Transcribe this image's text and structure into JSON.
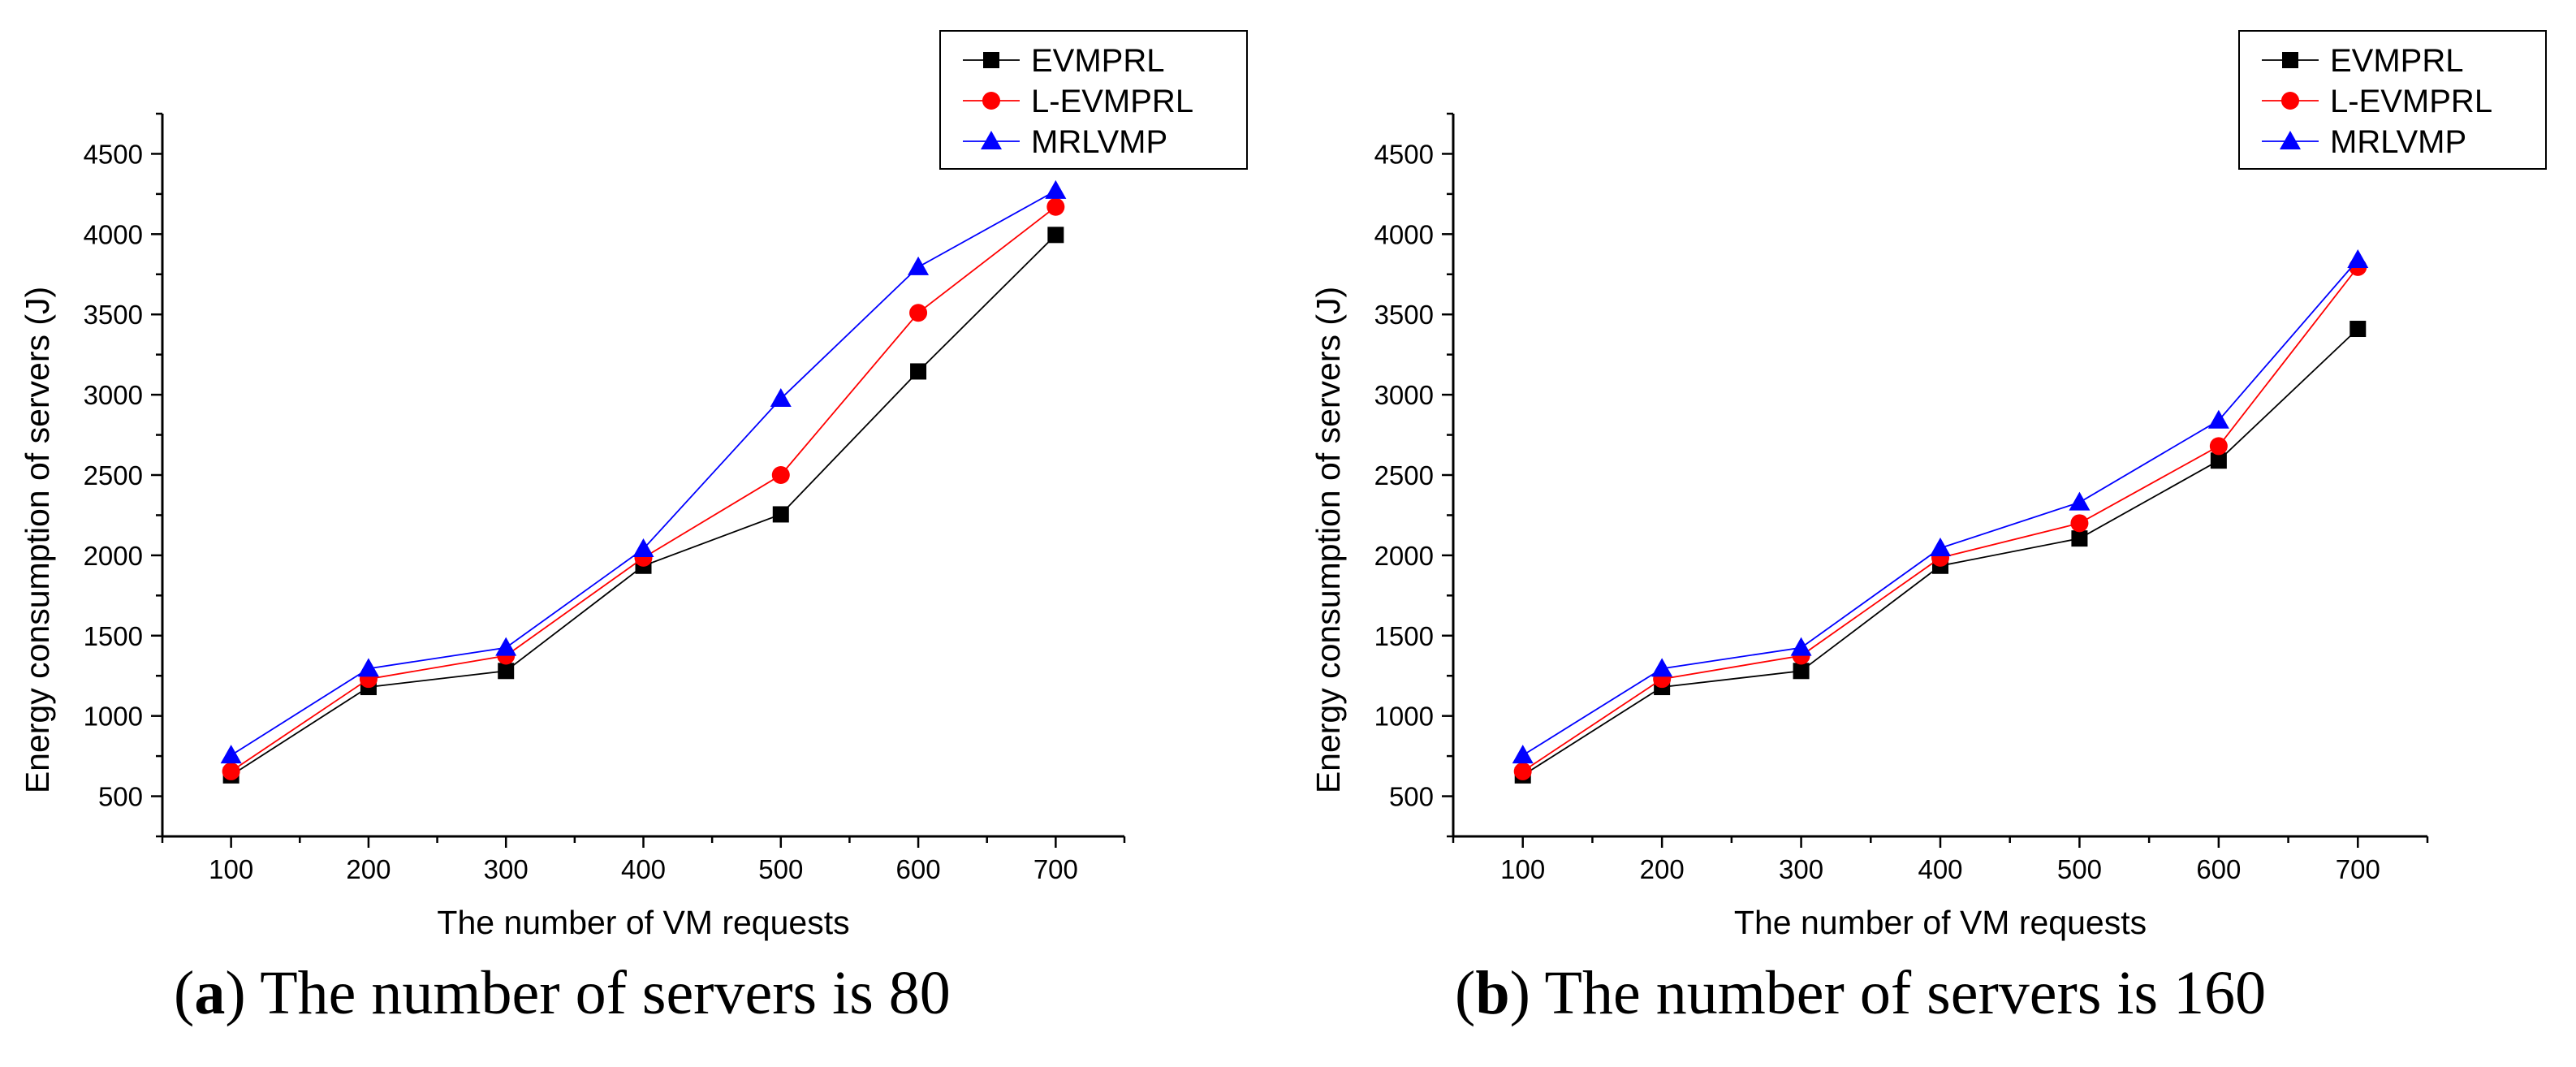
{
  "chart_data": [
    {
      "type": "line",
      "panel_letter": "a",
      "caption_text": " The number of servers is 80",
      "caption_open": "(",
      "caption_close": ")",
      "xlabel": "The number of VM requests",
      "ylabel": "Energy consumption of servers (J)",
      "x": [
        100,
        200,
        300,
        400,
        500,
        600,
        700
      ],
      "xlim": [
        50,
        750
      ],
      "ylim": [
        250,
        4750
      ],
      "xticks": [
        100,
        200,
        300,
        400,
        500,
        600,
        700
      ],
      "yticks": [
        500,
        1000,
        1500,
        2000,
        2500,
        3000,
        3500,
        4000,
        4500
      ],
      "legend_position": "top-right",
      "series": [
        {
          "name": "EVMPRL",
          "color": "#000000",
          "marker": "square",
          "values": [
            630,
            1180,
            1280,
            1935,
            2255,
            3145,
            3995
          ]
        },
        {
          "name": "L-EVMPRL",
          "color": "#ff0000",
          "marker": "circle",
          "values": [
            655,
            1230,
            1375,
            1985,
            2500,
            3510,
            4170
          ]
        },
        {
          "name": "MRLVMP",
          "color": "#0000ff",
          "marker": "triangle",
          "values": [
            755,
            1295,
            1425,
            2040,
            2975,
            3795,
            4270
          ]
        }
      ]
    },
    {
      "type": "line",
      "panel_letter": "b",
      "caption_text": " The number of servers is 160",
      "caption_open": "(",
      "caption_close": ")",
      "xlabel": "The number of VM requests",
      "ylabel": "Energy consumption of servers (J)",
      "x": [
        100,
        200,
        300,
        400,
        500,
        600,
        700
      ],
      "xlim": [
        50,
        750
      ],
      "ylim": [
        250,
        4750
      ],
      "xticks": [
        100,
        200,
        300,
        400,
        500,
        600,
        700
      ],
      "yticks": [
        500,
        1000,
        1500,
        2000,
        2500,
        3000,
        3500,
        4000,
        4500
      ],
      "legend_position": "top-right",
      "series": [
        {
          "name": "EVMPRL",
          "color": "#000000",
          "marker": "square",
          "values": [
            630,
            1180,
            1280,
            1935,
            2105,
            2590,
            3410
          ]
        },
        {
          "name": "L-EVMPRL",
          "color": "#ff0000",
          "marker": "circle",
          "values": [
            655,
            1230,
            1375,
            1985,
            2200,
            2680,
            3795
          ]
        },
        {
          "name": "MRLVMP",
          "color": "#0000ff",
          "marker": "triangle",
          "values": [
            755,
            1295,
            1425,
            2045,
            2330,
            2840,
            3840
          ]
        }
      ]
    }
  ]
}
